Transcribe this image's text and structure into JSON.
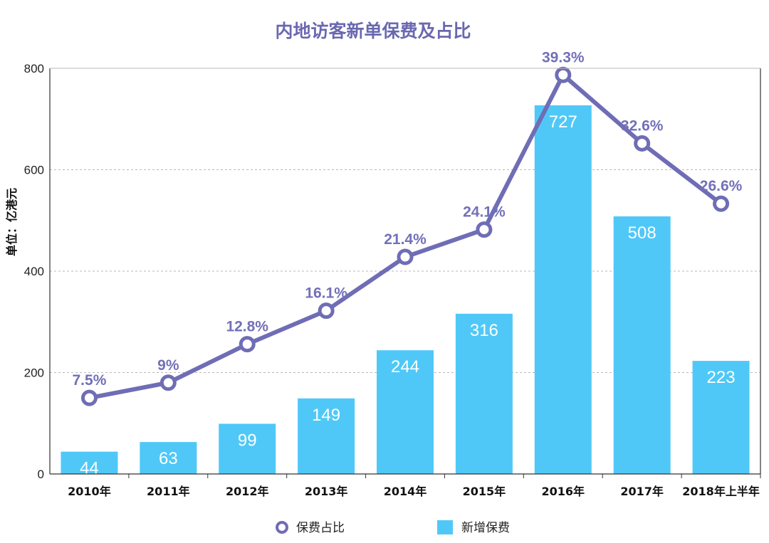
{
  "chart_data": {
    "type": "bar",
    "title": "内地访客新单保费及占比",
    "ylabel": "单位：亿港元",
    "xlabel": "",
    "ylim": [
      0,
      800
    ],
    "yticks": [
      0,
      200,
      400,
      600,
      800
    ],
    "grid": true,
    "legend_position": "bottom",
    "categories": [
      "2010年",
      "2011年",
      "2012年",
      "2013年",
      "2014年",
      "2015年",
      "2016年",
      "2017年",
      "2018年上半年"
    ],
    "series": [
      {
        "name": "保费占比",
        "type": "line",
        "color": "#6f6db5",
        "plotted_values": [
          150,
          180,
          256,
          322,
          428,
          482,
          787,
          652,
          533
        ],
        "labels": [
          "7.5%",
          "9%",
          "12.8%",
          "16.1%",
          "21.4%",
          "24.1%",
          "39.3%",
          "32.6%",
          "26.6%"
        ]
      },
      {
        "name": "新增保费",
        "type": "bar",
        "color": "#4fc8f8",
        "values": [
          44,
          63,
          99,
          149,
          244,
          316,
          727,
          508,
          223
        ]
      }
    ]
  }
}
